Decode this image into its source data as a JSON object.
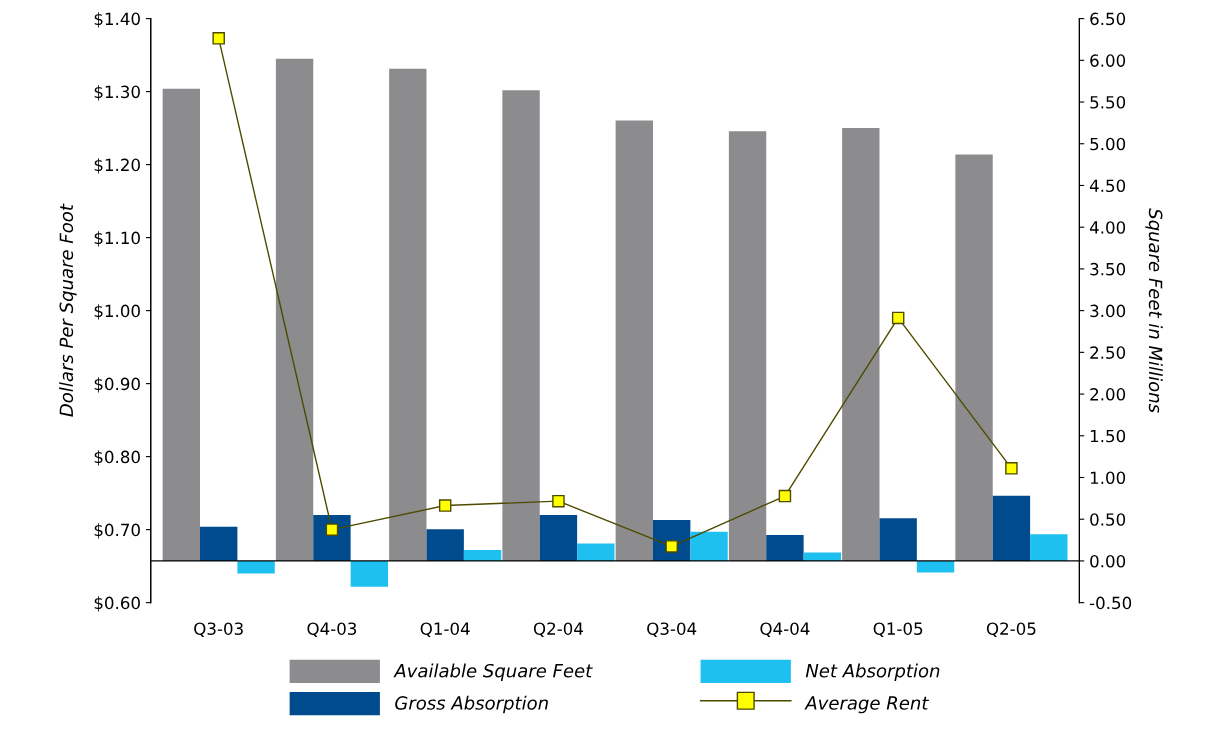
{
  "chart_data": {
    "type": "bar",
    "categories": [
      "Q3-03",
      "Q4-03",
      "Q1-04",
      "Q2-04",
      "Q3-04",
      "Q4-04",
      "Q1-05",
      "Q2-05"
    ],
    "ylabel": "Dollars Per Square Foot",
    "y2label": "Square Feet in Millions",
    "series": [
      {
        "name": "Available Square Feet",
        "axis": "y2",
        "color": "#8c8c8e",
        "values": [
          5.66,
          6.02,
          5.9,
          5.64,
          5.28,
          5.15,
          5.19,
          4.87
        ]
      },
      {
        "name": "Gross Absorption",
        "axis": "y2",
        "color": "#004b8d",
        "values": [
          0.41,
          0.55,
          0.38,
          0.55,
          0.49,
          0.31,
          0.51,
          0.78
        ]
      },
      {
        "name": "Net Absorption",
        "axis": "y2",
        "color": "#1ec0f0",
        "values": [
          -0.15,
          -0.31,
          0.13,
          0.21,
          0.35,
          0.1,
          -0.14,
          0.32
        ]
      },
      {
        "name": "Average Rent",
        "type": "line",
        "axis": "y",
        "color": "#4d4a00",
        "marker": "square",
        "values": [
          1.373,
          0.7,
          0.733,
          0.739,
          0.677,
          0.746,
          0.99,
          0.784
        ]
      }
    ],
    "ylim": [
      0.6,
      1.4
    ],
    "yticks": [
      {
        "value": 0.6,
        "label": "$0.60"
      },
      {
        "value": 0.7,
        "label": "$0.70"
      },
      {
        "value": 0.8,
        "label": "$0.80"
      },
      {
        "value": 0.9,
        "label": "$0.90"
      },
      {
        "value": 1.0,
        "label": "$1.00"
      },
      {
        "value": 1.1,
        "label": "$1.10"
      },
      {
        "value": 1.2,
        "label": "$1.20"
      },
      {
        "value": 1.3,
        "label": "$1.30"
      },
      {
        "value": 1.4,
        "label": "$1.40"
      }
    ],
    "y2lim": [
      -0.5,
      6.5
    ],
    "y2ticks": [
      {
        "value": -0.5,
        "label": "-0.50"
      },
      {
        "value": 0,
        "label": "0.00"
      },
      {
        "value": 0.5,
        "label": "0.50"
      },
      {
        "value": 1,
        "label": "1.00"
      },
      {
        "value": 1.5,
        "label": "1.50"
      },
      {
        "value": 2,
        "label": "2.00"
      },
      {
        "value": 2.5,
        "label": "2.50"
      },
      {
        "value": 3,
        "label": "3.00"
      },
      {
        "value": 3.5,
        "label": "3.50"
      },
      {
        "value": 4,
        "label": "4.00"
      },
      {
        "value": 4.5,
        "label": "4.50"
      },
      {
        "value": 5,
        "label": "5.00"
      },
      {
        "value": 5.5,
        "label": "5.50"
      },
      {
        "value": 6,
        "label": "6.00"
      },
      {
        "value": 6.5,
        "label": "6.50"
      }
    ],
    "legend": "bottom"
  }
}
